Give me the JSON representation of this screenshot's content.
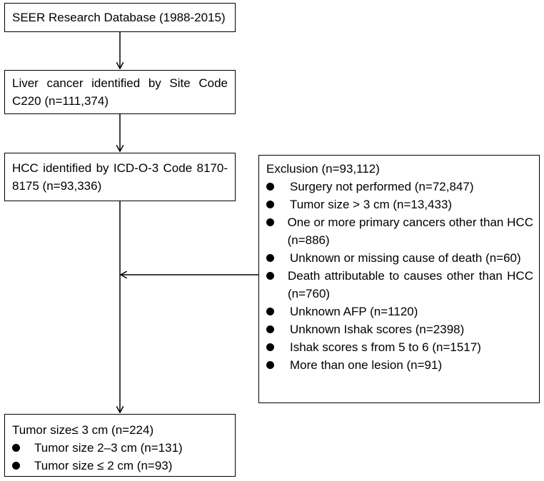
{
  "boxes": {
    "seer": "SEER Research Database (1988-2015)",
    "liver": "Liver cancer identified by Site Code C220 (n=111,374)",
    "hcc": "HCC identified by ICD-O-3 Code 8170-8175 (n=93,336)",
    "exclusion": {
      "title": "Exclusion (n=93,112)",
      "items": [
        "Surgery not performed (n=72,847)",
        "Tumor size > 3 cm (n=13,433)",
        "One or more primary cancers other than HCC (n=886)",
        "Unknown or missing cause of death (n=60)",
        "Death attributable to causes other than HCC (n=760)",
        "Unknown AFP (n=1120)",
        "Unknown Ishak scores (n=2398)",
        "Ishak scores s from 5 to 6 (n=1517)",
        "More than one lesion (n=91)"
      ]
    },
    "final": {
      "title": "Tumor size≤ 3 cm (n=224)",
      "items": [
        "Tumor size 2–3 cm (n=131)",
        "Tumor size ≤ 2 cm (n=93)"
      ]
    }
  }
}
